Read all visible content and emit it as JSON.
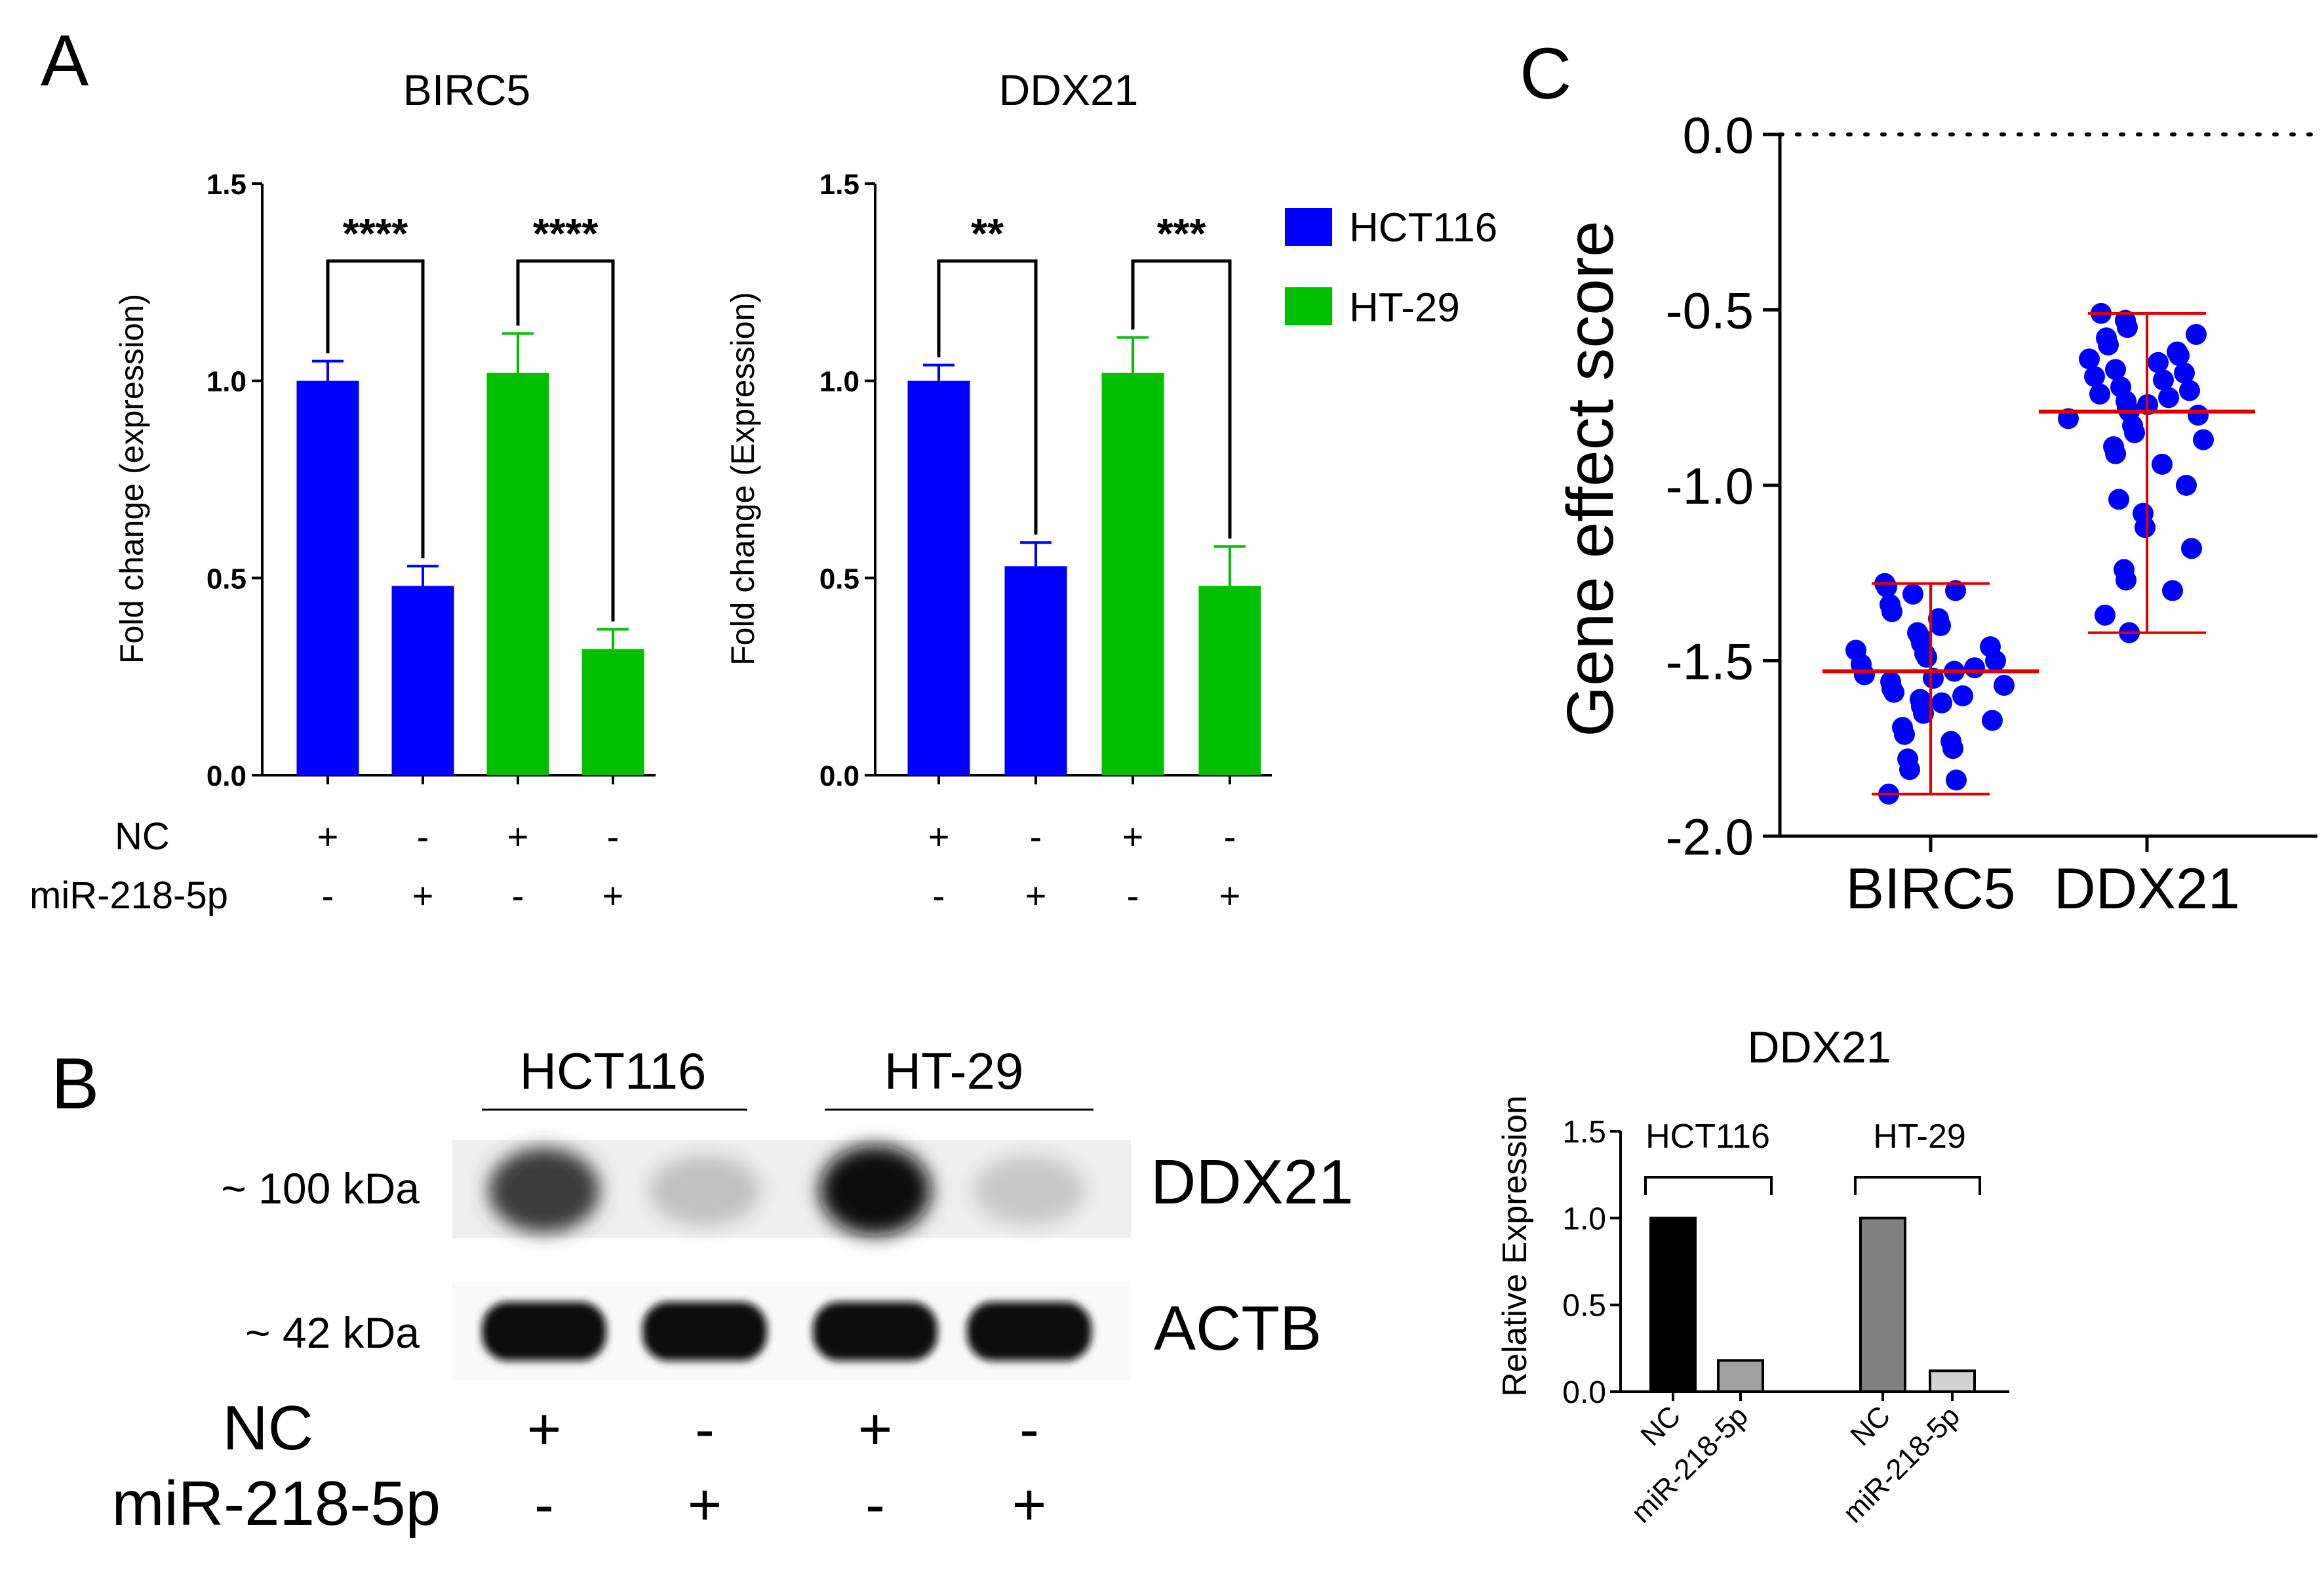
{
  "panel_labels": {
    "a": "A",
    "b": "B",
    "c": "C"
  },
  "colors": {
    "hct116": "#0000FF",
    "ht29": "#00C000",
    "sd_line": "#E00000",
    "dot": "#0000FF",
    "nc_bar": "#000000",
    "mir_bar_1": "#A0A0A0",
    "ht29_nc_bar": "#808080",
    "mir_bar_2": "#D2D2D2"
  },
  "treatments": {
    "row_labels": [
      "NC",
      "miR-218-5p"
    ],
    "nc_signs": [
      "+",
      "-",
      "+",
      "-"
    ],
    "mir_signs": [
      "-",
      "+",
      "-",
      "+"
    ]
  },
  "legend": [
    "HCT116",
    "HT-29"
  ],
  "chart_data": [
    {
      "id": "A-left",
      "type": "bar",
      "title": "BIRC5",
      "xlabel": "",
      "ylabel": "Fold change (expression)",
      "ylim": [
        0,
        1.5
      ],
      "yticks": [
        "0.0",
        "0.5",
        "1.0",
        "1.5"
      ],
      "categories": [
        "HCT116 NC",
        "HCT116 miR-218-5p",
        "HT-29 NC",
        "HT-29 miR-218-5p"
      ],
      "values": [
        1.0,
        0.48,
        1.02,
        0.32
      ],
      "errors": [
        0.05,
        0.05,
        0.1,
        0.05
      ],
      "bar_series": [
        "HCT116",
        "HCT116",
        "HT-29",
        "HT-29"
      ],
      "significance": [
        "****",
        "****"
      ]
    },
    {
      "id": "A-right",
      "type": "bar",
      "title": "DDX21",
      "xlabel": "",
      "ylabel": "Fold change (Expression)",
      "ylim": [
        0,
        1.5
      ],
      "yticks": [
        "0.0",
        "0.5",
        "1.0",
        "1.5"
      ],
      "categories": [
        "HCT116 NC",
        "HCT116 miR-218-5p",
        "HT-29 NC",
        "HT-29 miR-218-5p"
      ],
      "values": [
        1.0,
        0.53,
        1.02,
        0.48
      ],
      "errors": [
        0.04,
        0.06,
        0.09,
        0.1
      ],
      "bar_series": [
        "HCT116",
        "HCT116",
        "HT-29",
        "HT-29"
      ],
      "significance": [
        "**",
        "***"
      ]
    },
    {
      "id": "C",
      "type": "scatter",
      "title": "",
      "xlabel": "",
      "ylabel": "Gene effect score",
      "ylim": [
        -2.0,
        0.0
      ],
      "yticks": [
        "-2.0",
        "-1.5",
        "-1.0",
        "-0.5",
        "0.0"
      ],
      "categories": [
        "BIRC5",
        "DDX21"
      ],
      "series": [
        {
          "name": "BIRC5",
          "mean": -1.53,
          "min": -1.88,
          "max": -1.28,
          "values": [
            -1.28,
            -1.29,
            -1.3,
            -1.31,
            -1.34,
            -1.36,
            -1.38,
            -1.4,
            -1.42,
            -1.43,
            -1.45,
            -1.46,
            -1.47,
            -1.48,
            -1.49,
            -1.5,
            -1.51,
            -1.52,
            -1.53,
            -1.54,
            -1.55,
            -1.56,
            -1.57,
            -1.58,
            -1.59,
            -1.6,
            -1.61,
            -1.62,
            -1.63,
            -1.65,
            -1.67,
            -1.69,
            -1.71,
            -1.73,
            -1.75,
            -1.78,
            -1.81,
            -1.84,
            -1.88
          ]
        },
        {
          "name": "DDX21",
          "mean": -0.79,
          "min": -1.42,
          "max": -0.51,
          "values": [
            -0.51,
            -0.53,
            -0.55,
            -0.57,
            -0.58,
            -0.6,
            -0.62,
            -0.63,
            -0.64,
            -0.65,
            -0.67,
            -0.68,
            -0.69,
            -0.7,
            -0.72,
            -0.73,
            -0.74,
            -0.75,
            -0.76,
            -0.77,
            -0.78,
            -0.79,
            -0.8,
            -0.81,
            -0.83,
            -0.85,
            -0.87,
            -0.89,
            -0.91,
            -0.94,
            -1.0,
            -1.04,
            -1.08,
            -1.12,
            -1.18,
            -1.24,
            -1.27,
            -1.3,
            -1.37,
            -1.42
          ]
        }
      ],
      "reference_line": 0.0
    },
    {
      "id": "B-right",
      "type": "bar",
      "title": "DDX21",
      "xlabel": "",
      "ylabel": "Relative Expression",
      "ylim": [
        0,
        1.5
      ],
      "yticks": [
        "0.0",
        "0.5",
        "1.0",
        "1.5"
      ],
      "categories": [
        "NC",
        "miR-218-5p",
        "NC",
        "miR-218-5p"
      ],
      "values": [
        1.0,
        0.18,
        1.0,
        0.12
      ],
      "groups": [
        "HCT116",
        "HT-29"
      ]
    }
  ],
  "western_blot": {
    "cell_lines": [
      "HCT116",
      "HT-29"
    ],
    "bands": [
      {
        "size": "~ 100 kDa",
        "protein": "DDX21",
        "intensity": [
          0.75,
          0.18,
          0.95,
          0.15
        ]
      },
      {
        "size": "~  42 kDa",
        "protein": "ACTB",
        "intensity": [
          1.0,
          1.0,
          1.0,
          1.0
        ]
      }
    ]
  }
}
